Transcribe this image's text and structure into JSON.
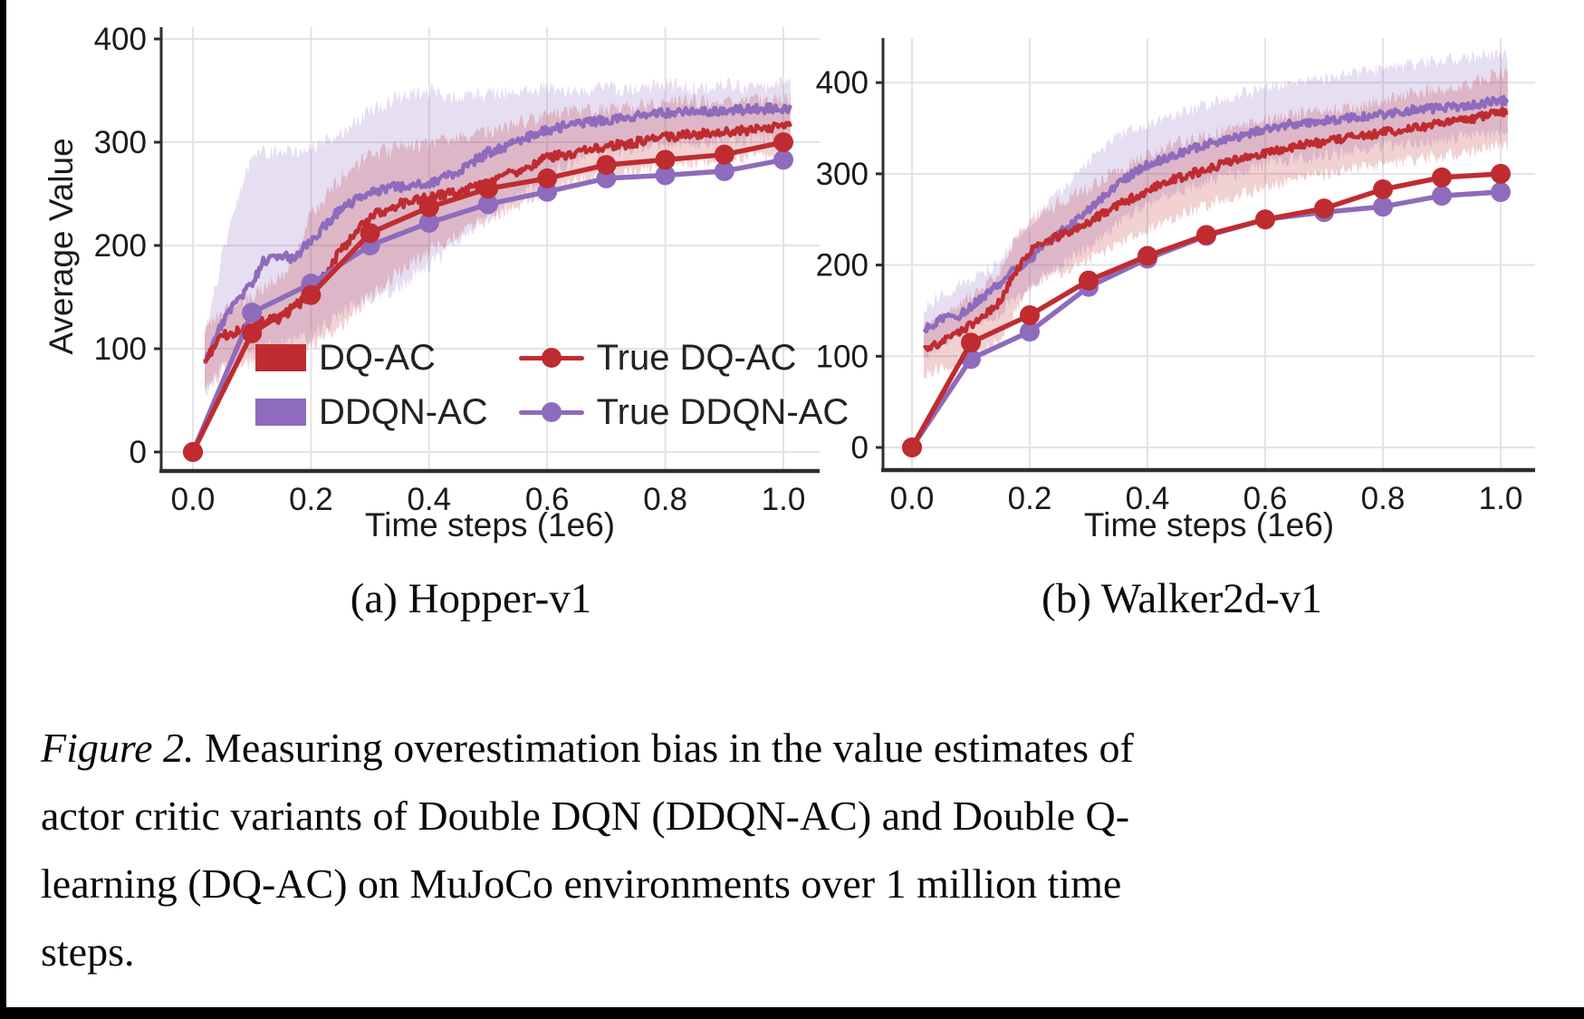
{
  "colors": {
    "red": "#bf2c30",
    "purple": "#8e6bbd",
    "red_band": "#bf2c30",
    "purple_band": "#8e6bbd",
    "grid": "#e3e3e7",
    "spine": "#2e2e2e",
    "text": "#1b1b1b",
    "background": "#ffffff",
    "page_border": "#000000"
  },
  "figure": {
    "legend": {
      "entries": [
        {
          "label": "DQ-AC",
          "type": "patch",
          "color": "red"
        },
        {
          "label": "DDQN-AC",
          "type": "patch",
          "color": "purple"
        },
        {
          "label": "True DQ-AC",
          "type": "marker",
          "color": "red"
        },
        {
          "label": "True DDQN-AC",
          "type": "marker",
          "color": "purple"
        }
      ]
    },
    "subcaption_a": "(a) Hopper-v1",
    "subcaption_b": "(b) Walker2d-v1"
  },
  "caption": {
    "prefix": "Figure 2.",
    "lines": [
      " Measuring overestimation bias in the value estimates of",
      "actor critic variants of Double DQN (DDQN-AC) and Double Q-",
      "learning (DQ-AC) on MuJoCo environments over 1 million time",
      "steps."
    ]
  },
  "chart_data": [
    {
      "type": "line",
      "title": "(a) Hopper-v1",
      "xlabel": "Time steps (1e6)",
      "ylabel": "Average Value",
      "xlim": [
        -0.057,
        1.058
      ],
      "ylim": [
        -18,
        411
      ],
      "xticks": [
        {
          "v": 0.0,
          "label": "0.0"
        },
        {
          "v": 0.2,
          "label": "0.2"
        },
        {
          "v": 0.4,
          "label": "0.4"
        },
        {
          "v": 0.6,
          "label": "0.6"
        },
        {
          "v": 0.8,
          "label": "0.8"
        },
        {
          "v": 1.0,
          "label": "1.0"
        }
      ],
      "yticks": [
        {
          "v": 0,
          "label": "0"
        },
        {
          "v": 100,
          "label": "100"
        },
        {
          "v": 200,
          "label": "200"
        },
        {
          "v": 300,
          "label": "300"
        },
        {
          "v": 400,
          "label": "400"
        }
      ],
      "grid": true,
      "legend_position": "lower right inside",
      "series": [
        {
          "name": "DQ-AC",
          "style": "noisy",
          "color": "red",
          "x": [
            0.02,
            0.05,
            0.08,
            0.1,
            0.12,
            0.15,
            0.17,
            0.2,
            0.25,
            0.3,
            0.35,
            0.4,
            0.45,
            0.5,
            0.55,
            0.6,
            0.65,
            0.7,
            0.75,
            0.8,
            0.85,
            0.9,
            0.95,
            1.0
          ],
          "mean": [
            90,
            112,
            118,
            122,
            126,
            130,
            140,
            152,
            195,
            228,
            240,
            246,
            252,
            262,
            272,
            285,
            290,
            295,
            300,
            305,
            308,
            310,
            312,
            315
          ],
          "band_low": [
            60,
            78,
            82,
            86,
            88,
            92,
            100,
            105,
            120,
            150,
            175,
            195,
            210,
            225,
            240,
            252,
            262,
            268,
            272,
            278,
            282,
            285,
            286,
            288
          ],
          "band_high": [
            118,
            138,
            145,
            152,
            158,
            168,
            185,
            230,
            265,
            288,
            295,
            300,
            305,
            310,
            318,
            325,
            330,
            332,
            335,
            338,
            340,
            338,
            340,
            342
          ]
        },
        {
          "name": "DDQN-AC",
          "style": "noisy",
          "color": "purple",
          "x": [
            0.02,
            0.05,
            0.08,
            0.1,
            0.12,
            0.15,
            0.17,
            0.2,
            0.25,
            0.3,
            0.35,
            0.4,
            0.45,
            0.5,
            0.55,
            0.6,
            0.65,
            0.7,
            0.75,
            0.8,
            0.85,
            0.9,
            0.95,
            1.0
          ],
          "mean": [
            85,
            125,
            150,
            162,
            185,
            190,
            187,
            205,
            235,
            252,
            257,
            260,
            272,
            290,
            300,
            312,
            318,
            322,
            325,
            328,
            330,
            330,
            332,
            333
          ],
          "band_low": [
            58,
            85,
            95,
            98,
            102,
            105,
            108,
            112,
            135,
            150,
            160,
            180,
            205,
            228,
            248,
            268,
            282,
            290,
            295,
            298,
            300,
            302,
            304,
            305
          ],
          "band_high": [
            112,
            190,
            250,
            285,
            290,
            292,
            290,
            296,
            306,
            330,
            345,
            350,
            342,
            346,
            350,
            352,
            348,
            352,
            352,
            356,
            352,
            356,
            352,
            356
          ]
        },
        {
          "name": "True DQ-AC",
          "style": "marker",
          "color": "red",
          "x": [
            0,
            0.1,
            0.2,
            0.3,
            0.4,
            0.5,
            0.6,
            0.7,
            0.8,
            0.9,
            1.0
          ],
          "values": [
            0,
            115,
            152,
            212,
            237,
            255,
            265,
            278,
            283,
            288,
            300
          ]
        },
        {
          "name": "True DDQN-AC",
          "style": "marker",
          "color": "purple",
          "x": [
            0,
            0.1,
            0.2,
            0.3,
            0.4,
            0.5,
            0.6,
            0.7,
            0.8,
            0.9,
            1.0
          ],
          "values": [
            0,
            135,
            163,
            200,
            222,
            240,
            252,
            265,
            268,
            272,
            283
          ]
        }
      ]
    },
    {
      "type": "line",
      "title": "(b) Walker2d-v1",
      "xlabel": "Time steps (1e6)",
      "ylabel": "",
      "xlim": [
        -0.049,
        1.058
      ],
      "ylim": [
        -25,
        449
      ],
      "xticks": [
        {
          "v": 0.0,
          "label": "0.0"
        },
        {
          "v": 0.2,
          "label": "0.2"
        },
        {
          "v": 0.4,
          "label": "0.4"
        },
        {
          "v": 0.6,
          "label": "0.6"
        },
        {
          "v": 0.8,
          "label": "0.8"
        },
        {
          "v": 1.0,
          "label": "1.0"
        }
      ],
      "yticks": [
        {
          "v": 0,
          "label": "0"
        },
        {
          "v": 100,
          "label": "100"
        },
        {
          "v": 200,
          "label": "200"
        },
        {
          "v": 300,
          "label": "300"
        },
        {
          "v": 400,
          "label": "400"
        }
      ],
      "grid": true,
      "legend_position": "none",
      "series": [
        {
          "name": "DQ-AC",
          "style": "noisy",
          "color": "red",
          "x": [
            0.02,
            0.05,
            0.08,
            0.1,
            0.12,
            0.15,
            0.17,
            0.2,
            0.25,
            0.3,
            0.35,
            0.4,
            0.45,
            0.5,
            0.55,
            0.6,
            0.65,
            0.7,
            0.75,
            0.8,
            0.85,
            0.9,
            0.95,
            1.0
          ],
          "mean": [
            105,
            115,
            125,
            135,
            142,
            160,
            185,
            215,
            232,
            247,
            265,
            282,
            295,
            305,
            315,
            322,
            330,
            335,
            340,
            345,
            350,
            355,
            360,
            368
          ],
          "band_low": [
            80,
            88,
            95,
            100,
            105,
            118,
            140,
            175,
            192,
            205,
            222,
            240,
            252,
            265,
            275,
            285,
            295,
            300,
            305,
            310,
            315,
            320,
            324,
            330
          ],
          "band_high": [
            130,
            145,
            155,
            165,
            172,
            195,
            225,
            252,
            268,
            285,
            305,
            320,
            335,
            342,
            352,
            358,
            365,
            368,
            374,
            380,
            388,
            394,
            400,
            410
          ]
        },
        {
          "name": "DDQN-AC",
          "style": "noisy",
          "color": "purple",
          "x": [
            0.02,
            0.05,
            0.08,
            0.1,
            0.12,
            0.15,
            0.17,
            0.2,
            0.25,
            0.3,
            0.35,
            0.4,
            0.45,
            0.5,
            0.55,
            0.6,
            0.65,
            0.7,
            0.75,
            0.8,
            0.85,
            0.9,
            0.95,
            1.0
          ],
          "mean": [
            130,
            140,
            145,
            155,
            165,
            180,
            192,
            205,
            235,
            260,
            290,
            310,
            322,
            332,
            340,
            350,
            355,
            358,
            362,
            365,
            370,
            372,
            376,
            380
          ],
          "band_low": [
            100,
            115,
            125,
            130,
            136,
            148,
            160,
            175,
            198,
            220,
            245,
            265,
            280,
            290,
            300,
            310,
            316,
            320,
            325,
            330,
            335,
            338,
            341,
            345
          ],
          "band_high": [
            152,
            168,
            178,
            185,
            192,
            205,
            222,
            240,
            282,
            312,
            342,
            355,
            365,
            375,
            385,
            395,
            400,
            405,
            410,
            415,
            420,
            425,
            428,
            430
          ]
        },
        {
          "name": "True DQ-AC",
          "style": "marker",
          "color": "red",
          "x": [
            0,
            0.1,
            0.2,
            0.3,
            0.4,
            0.5,
            0.6,
            0.7,
            0.8,
            0.9,
            1.0
          ],
          "values": [
            0,
            115,
            145,
            183,
            210,
            233,
            250,
            262,
            283,
            296,
            300
          ]
        },
        {
          "name": "True DDQN-AC",
          "style": "marker",
          "color": "purple",
          "x": [
            0,
            0.1,
            0.2,
            0.3,
            0.4,
            0.5,
            0.6,
            0.7,
            0.8,
            0.9,
            1.0
          ],
          "values": [
            0,
            97,
            127,
            176,
            207,
            232,
            250,
            258,
            264,
            276,
            280
          ]
        }
      ]
    }
  ]
}
